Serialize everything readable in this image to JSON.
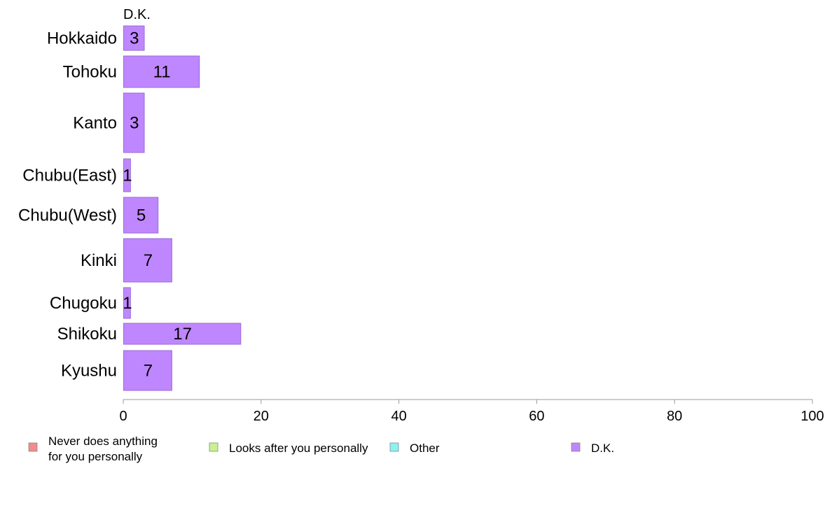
{
  "chart_data": {
    "type": "bar",
    "orientation": "horizontal",
    "series_header": "D.K.",
    "categories": [
      "Hokkaido",
      "Tohoku",
      "Kanto",
      "Chubu(East)",
      "Chubu(West)",
      "Kinki",
      "Chugoku",
      "Shikoku",
      "Kyushu"
    ],
    "series": [
      {
        "name": "D.K.",
        "values": [
          3,
          11,
          3,
          1,
          5,
          7,
          1,
          17,
          7
        ],
        "color": "#bf87ff"
      }
    ],
    "data_labels": [
      "3",
      "11",
      "3",
      "1",
      "5",
      "7",
      "1",
      "17",
      "7"
    ],
    "xlim": [
      0,
      100
    ],
    "xticks": [
      0,
      20,
      40,
      60,
      80,
      100
    ],
    "xtick_labels": [
      "0",
      "20",
      "40",
      "60",
      "80",
      "100"
    ],
    "grid": false,
    "legend_position": "bottom",
    "legend": [
      {
        "label_lines": [
          "Never does anything",
          "for you personally"
        ],
        "color": "#f28b8b"
      },
      {
        "label_lines": [
          "Looks after you personally"
        ],
        "color": "#c8f28b"
      },
      {
        "label_lines": [
          "Other"
        ],
        "color": "#8bf2f2"
      },
      {
        "label_lines": [
          "D.K."
        ],
        "color": "#bf87ff"
      }
    ]
  }
}
